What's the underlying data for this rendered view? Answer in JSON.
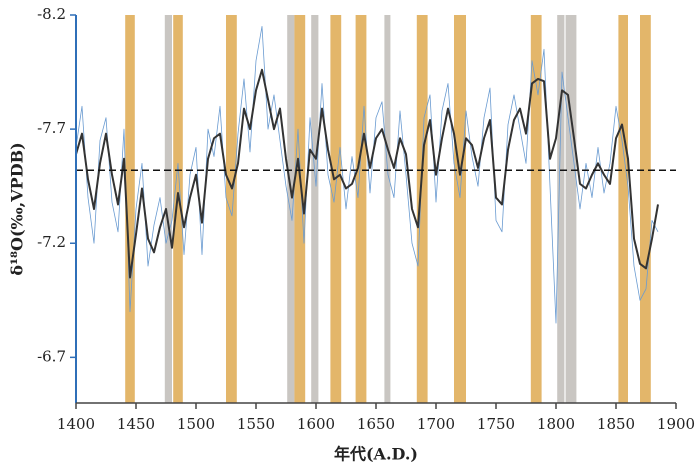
{
  "chart_data": {
    "type": "line",
    "xlabel": "年代(A.D.)",
    "ylabel": "δ¹⁸O(‰,VPDB)",
    "x": [
      1400,
      1405,
      1410,
      1415,
      1420,
      1425,
      1430,
      1435,
      1440,
      1445,
      1450,
      1455,
      1460,
      1465,
      1470,
      1475,
      1480,
      1485,
      1490,
      1495,
      1500,
      1505,
      1510,
      1515,
      1520,
      1525,
      1530,
      1535,
      1540,
      1545,
      1550,
      1555,
      1560,
      1565,
      1570,
      1575,
      1580,
      1585,
      1590,
      1595,
      1600,
      1605,
      1610,
      1615,
      1620,
      1625,
      1630,
      1635,
      1640,
      1645,
      1650,
      1655,
      1660,
      1665,
      1670,
      1675,
      1680,
      1685,
      1690,
      1695,
      1700,
      1705,
      1710,
      1715,
      1720,
      1725,
      1730,
      1735,
      1740,
      1745,
      1750,
      1755,
      1760,
      1765,
      1770,
      1775,
      1780,
      1785,
      1790,
      1795,
      1800,
      1805,
      1810,
      1815,
      1820,
      1825,
      1830,
      1835,
      1840,
      1845,
      1850,
      1855,
      1860,
      1865,
      1870,
      1875,
      1880,
      1885
    ],
    "series": [
      {
        "color": "#6a9bd1",
        "width": 0.8,
        "values": [
          -7.62,
          -7.8,
          -7.4,
          -7.2,
          -7.65,
          -7.75,
          -7.38,
          -7.25,
          -7.7,
          -6.9,
          -7.35,
          -7.55,
          -7.1,
          -7.28,
          -7.4,
          -7.2,
          -7.3,
          -7.55,
          -7.15,
          -7.5,
          -7.62,
          -7.15,
          -7.7,
          -7.58,
          -7.8,
          -7.4,
          -7.32,
          -7.68,
          -7.92,
          -7.6,
          -8.0,
          -8.15,
          -7.7,
          -7.85,
          -7.65,
          -7.45,
          -7.3,
          -7.7,
          -7.2,
          -7.75,
          -7.45,
          -7.9,
          -7.5,
          -7.38,
          -7.62,
          -7.35,
          -7.58,
          -7.4,
          -7.8,
          -7.42,
          -7.75,
          -7.82,
          -7.5,
          -7.4,
          -7.78,
          -7.5,
          -7.2,
          -7.1,
          -7.75,
          -7.85,
          -7.38,
          -7.78,
          -7.9,
          -7.55,
          -7.4,
          -7.78,
          -7.58,
          -7.45,
          -7.75,
          -7.88,
          -7.3,
          -7.25,
          -7.72,
          -7.85,
          -7.7,
          -7.55,
          -8.0,
          -7.85,
          -8.05,
          -7.45,
          -6.85,
          -7.95,
          -7.75,
          -7.55,
          -7.35,
          -7.55,
          -7.4,
          -7.62,
          -7.42,
          -7.55,
          -7.8,
          -7.65,
          -7.45,
          -7.1,
          -6.95,
          -7.0,
          -7.3,
          -7.25
        ]
      },
      {
        "color": "#333333",
        "width": 2,
        "values": [
          -7.59,
          -7.68,
          -7.48,
          -7.35,
          -7.55,
          -7.68,
          -7.5,
          -7.37,
          -7.57,
          -7.05,
          -7.24,
          -7.44,
          -7.22,
          -7.16,
          -7.27,
          -7.35,
          -7.18,
          -7.42,
          -7.27,
          -7.4,
          -7.5,
          -7.29,
          -7.57,
          -7.66,
          -7.68,
          -7.5,
          -7.44,
          -7.55,
          -7.79,
          -7.7,
          -7.87,
          -7.96,
          -7.83,
          -7.7,
          -7.79,
          -7.57,
          -7.4,
          -7.57,
          -7.33,
          -7.61,
          -7.57,
          -7.79,
          -7.61,
          -7.48,
          -7.5,
          -7.44,
          -7.46,
          -7.53,
          -7.68,
          -7.53,
          -7.66,
          -7.7,
          -7.61,
          -7.53,
          -7.66,
          -7.59,
          -7.35,
          -7.27,
          -7.63,
          -7.74,
          -7.5,
          -7.66,
          -7.79,
          -7.68,
          -7.5,
          -7.66,
          -7.63,
          -7.53,
          -7.66,
          -7.74,
          -7.4,
          -7.37,
          -7.61,
          -7.74,
          -7.79,
          -7.68,
          -7.9,
          -7.92,
          -7.91,
          -7.57,
          -7.66,
          -7.87,
          -7.85,
          -7.66,
          -7.46,
          -7.44,
          -7.5,
          -7.55,
          -7.5,
          -7.46,
          -7.66,
          -7.72,
          -7.57,
          -7.22,
          -7.11,
          -7.09,
          -7.22,
          -7.37
        ]
      }
    ],
    "reference_line": -7.52,
    "bands": [
      {
        "start": 1441,
        "end": 1449,
        "color": "#e3b66a"
      },
      {
        "start": 1474,
        "end": 1480,
        "color": "#c9c6c2"
      },
      {
        "start": 1481,
        "end": 1489,
        "color": "#e3b66a"
      },
      {
        "start": 1525,
        "end": 1534,
        "color": "#e3b66a"
      },
      {
        "start": 1576,
        "end": 1582,
        "color": "#c9c6c2"
      },
      {
        "start": 1582,
        "end": 1591,
        "color": "#e3b66a"
      },
      {
        "start": 1596,
        "end": 1602,
        "color": "#c9c6c2"
      },
      {
        "start": 1612,
        "end": 1621,
        "color": "#e3b66a"
      },
      {
        "start": 1633,
        "end": 1642,
        "color": "#e3b66a"
      },
      {
        "start": 1657,
        "end": 1662,
        "color": "#c9c6c2"
      },
      {
        "start": 1684,
        "end": 1693,
        "color": "#e3b66a"
      },
      {
        "start": 1715,
        "end": 1725,
        "color": "#e3b66a"
      },
      {
        "start": 1779,
        "end": 1788,
        "color": "#e3b66a"
      },
      {
        "start": 1801,
        "end": 1807,
        "color": "#c9c6c2"
      },
      {
        "start": 1808,
        "end": 1817,
        "color": "#c9c6c2"
      },
      {
        "start": 1852,
        "end": 1860,
        "color": "#e3b66a"
      },
      {
        "start": 1870,
        "end": 1879,
        "color": "#e3b66a"
      }
    ],
    "xlim": [
      1400,
      1900
    ],
    "xticks": [
      1400,
      1450,
      1500,
      1550,
      1600,
      1650,
      1700,
      1750,
      1800,
      1850,
      1900
    ],
    "ylim": [
      -6.5,
      -8.2
    ],
    "yticks": [
      -8.2,
      -7.7,
      -7.2,
      -6.7
    ]
  }
}
